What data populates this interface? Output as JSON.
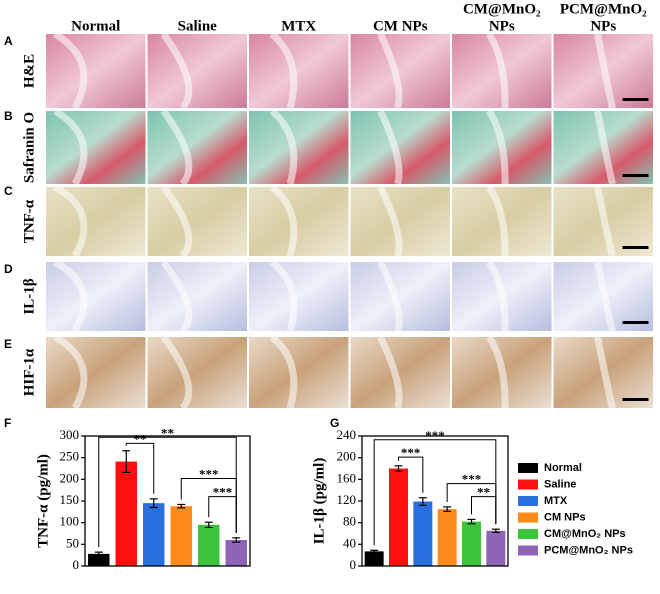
{
  "panels": [
    "A",
    "B",
    "C",
    "D",
    "E",
    "F",
    "G"
  ],
  "headers": [
    [
      "Normal"
    ],
    [
      "Saline"
    ],
    [
      "MTX"
    ],
    [
      "CM NPs"
    ],
    [
      "CM@MnO₂",
      "NPs"
    ],
    [
      "PCM@MnO₂",
      "NPs"
    ]
  ],
  "rows": [
    "H&E",
    "Safranin O",
    "TNF-α",
    "IL-1β",
    "HIF-1α"
  ],
  "chart_data": [
    {
      "type": "bar",
      "ylabel": "TNF-α (pg/ml)",
      "values": [
        28,
        241,
        145,
        138,
        95,
        60
      ],
      "errors": [
        4,
        25,
        10,
        4,
        6,
        5
      ],
      "colors": [
        "#000000",
        "#ff1010",
        "#2a6fe0",
        "#ff8c1a",
        "#3cc43c",
        "#8e63b8"
      ],
      "ylim": [
        0,
        300
      ],
      "yticks": [
        0,
        50,
        100,
        150,
        200,
        250,
        300
      ],
      "annotations": [
        {
          "text": "**",
          "between": [
            0,
            5
          ],
          "y": 297
        },
        {
          "text": "**",
          "between": [
            1,
            2
          ],
          "y": 283
        },
        {
          "text": "***",
          "between": [
            3,
            5
          ],
          "y": 202
        },
        {
          "text": "***",
          "between": [
            4,
            5
          ],
          "y": 160
        }
      ]
    },
    {
      "type": "bar",
      "ylabel": "IL-1β (pg/ml)",
      "categories": [
        "Normal",
        "Saline",
        "MTX",
        "CM NPs",
        "CM@MnO₂ NPs",
        "PCM@MnO₂ NPs"
      ],
      "values": [
        27,
        180,
        119,
        105,
        82,
        65
      ],
      "errors": [
        2,
        5,
        7,
        4,
        4,
        3
      ],
      "colors": [
        "#000000",
        "#ff1010",
        "#2a6fe0",
        "#ff8c1a",
        "#3cc43c",
        "#8e63b8"
      ],
      "ylim": [
        0,
        240
      ],
      "yticks": [
        0,
        40,
        80,
        120,
        160,
        200,
        240
      ],
      "legend": "right",
      "annotations": [
        {
          "text": "***",
          "between": [
            0,
            5
          ],
          "y": 233
        },
        {
          "text": "***",
          "between": [
            1,
            2
          ],
          "y": 201
        },
        {
          "text": "***",
          "between": [
            3,
            5
          ],
          "y": 152
        },
        {
          "text": "**",
          "between": [
            4,
            5
          ],
          "y": 128
        }
      ]
    }
  ]
}
